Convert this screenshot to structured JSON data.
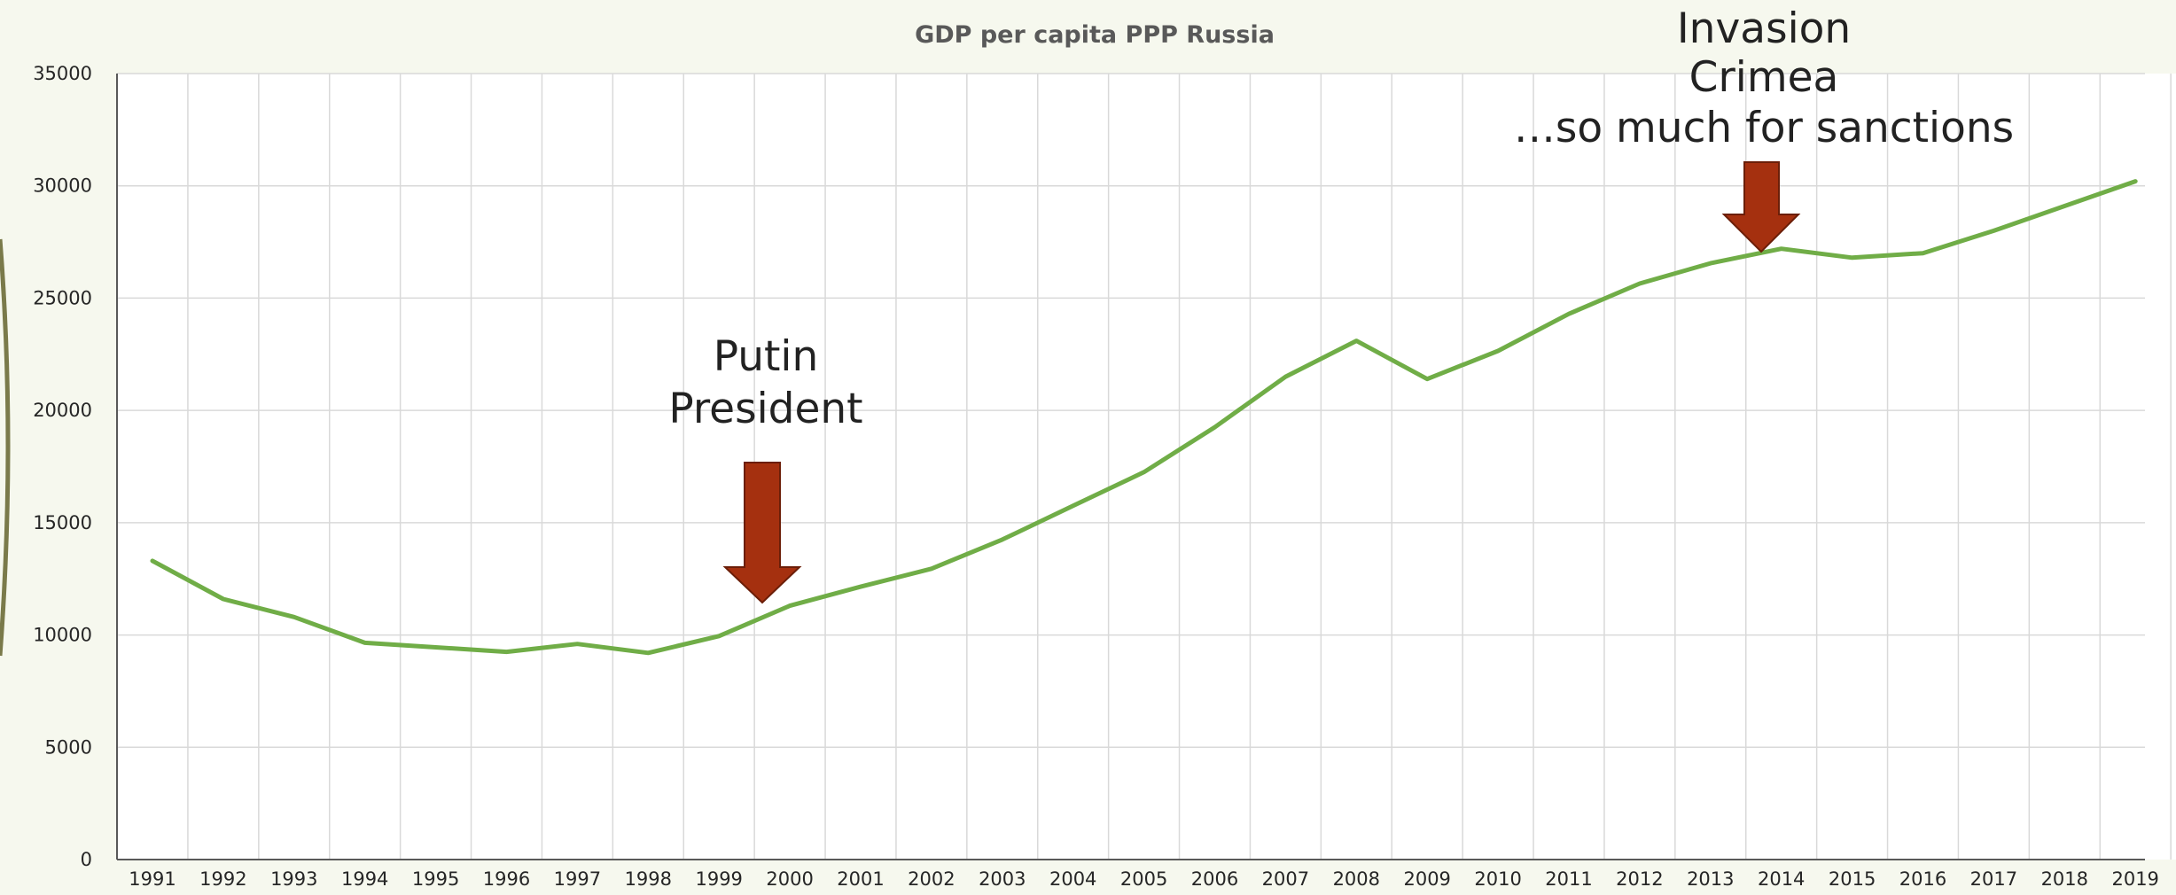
{
  "colors": {
    "background": "#f6f8ee",
    "plot_background": "#ffffff",
    "line": "#70ad47",
    "grid": "#d9d9d9",
    "arrow": "#a5300f",
    "arrow_border": "#6b1e08",
    "slide_accent": "#7a7a4a"
  },
  "chart_data": {
    "type": "line",
    "title": "GDP per capita PPP Russia",
    "xlabel": "",
    "ylabel": "",
    "x": [
      "1991",
      "1992",
      "1993",
      "1994",
      "1995",
      "1996",
      "1997",
      "1998",
      "1999",
      "2000",
      "2001",
      "2002",
      "2003",
      "2004",
      "2005",
      "2006",
      "2007",
      "2008",
      "2009",
      "2010",
      "2011",
      "2012",
      "2013",
      "2014",
      "2015",
      "2016",
      "2017",
      "2018",
      "2019"
    ],
    "series": [
      {
        "values": [
          13300,
          11600,
          10800,
          9650,
          9450,
          9250,
          9600,
          9200,
          9950,
          11300,
          12150,
          12950,
          14250,
          15750,
          17250,
          19250,
          21500,
          23100,
          21400,
          22650,
          24300,
          25650,
          26550,
          27200,
          26800,
          27000,
          28000,
          29100,
          30200
        ]
      }
    ],
    "ylim": [
      0,
      35000
    ],
    "yticks": [
      "35000",
      "30000",
      "25000",
      "20000",
      "15000",
      "10000",
      "5000",
      "0"
    ],
    "grid": true,
    "legend": "none"
  },
  "annotations": {
    "putin": {
      "line1": "Putin",
      "line2": "President",
      "year": "2000"
    },
    "crimea": {
      "line1": "Invasion",
      "line2": "Crimea",
      "line3": "…so much for sanctions",
      "year": "2014"
    }
  }
}
